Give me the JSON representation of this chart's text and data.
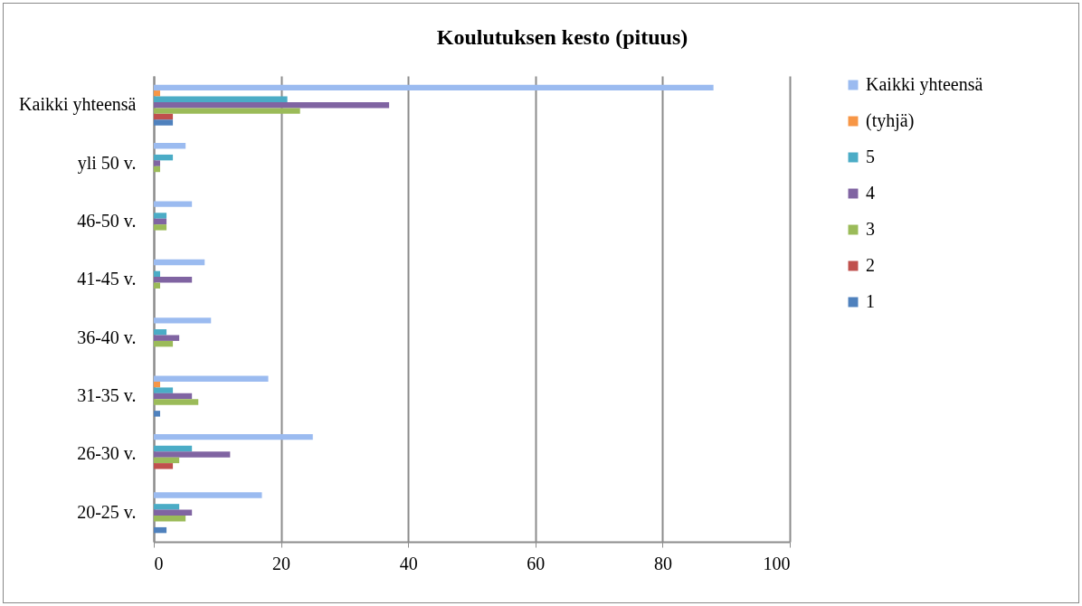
{
  "chart_data": {
    "type": "bar",
    "orientation": "horizontal",
    "title": "Koulutuksen kesto (pituus)",
    "categories": [
      "Kaikki yhteensä",
      "yli 50 v.",
      "46-50 v.",
      "41-45 v.",
      "36-40 v.",
      "31-35 v.",
      "26-30 v.",
      "20-25 v."
    ],
    "series": [
      {
        "name": "Kaikki yhteensä",
        "color": "#9bbbf0",
        "values": [
          88,
          5,
          6,
          8,
          9,
          18,
          25,
          17
        ]
      },
      {
        "name": "(tyhjä)",
        "color": "#f79646",
        "values": [
          1,
          0,
          0,
          0,
          0,
          1,
          0,
          0
        ]
      },
      {
        "name": "5",
        "color": "#4bacc6",
        "values": [
          21,
          3,
          2,
          1,
          2,
          3,
          6,
          4
        ]
      },
      {
        "name": "4",
        "color": "#8064a2",
        "values": [
          37,
          1,
          2,
          6,
          4,
          6,
          12,
          6
        ]
      },
      {
        "name": "3",
        "color": "#9bbb59",
        "values": [
          23,
          1,
          2,
          1,
          3,
          7,
          4,
          5
        ]
      },
      {
        "name": "2",
        "color": "#c0504d",
        "values": [
          3,
          0,
          0,
          0,
          0,
          0,
          3,
          0
        ]
      },
      {
        "name": "1",
        "color": "#4f81bd",
        "values": [
          3,
          0,
          0,
          0,
          0,
          1,
          0,
          2
        ]
      }
    ],
    "xlim": [
      0,
      100
    ],
    "xticks": [
      0,
      20,
      40,
      60,
      80,
      100
    ],
    "grid": "x",
    "legend": "right"
  }
}
